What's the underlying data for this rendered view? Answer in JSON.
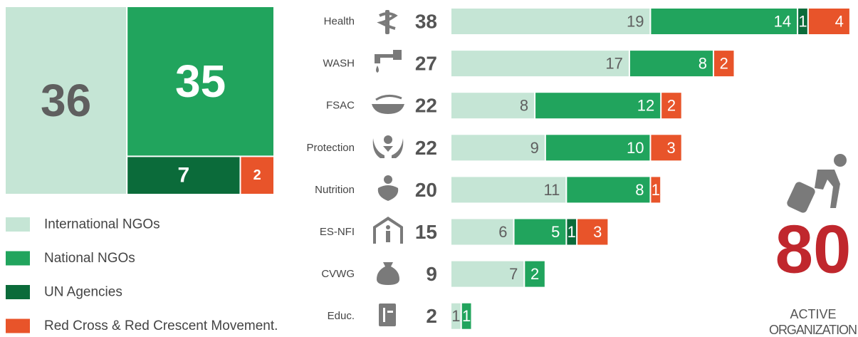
{
  "chart_data": [
    {
      "type": "treemap",
      "values": [
        36,
        35,
        7,
        2
      ]
    },
    {
      "type": "bar",
      "orientation": "horizontal",
      "stacked": true,
      "categories": [
        "Health",
        "WASH",
        "FSAC",
        "Protection",
        "Nutrition",
        "ES-NFI",
        "CVWG",
        "Educ."
      ],
      "totals": [
        38,
        27,
        22,
        22,
        20,
        15,
        9,
        2
      ],
      "series": [
        {
          "name": "International NGOs",
          "color": "#c5e5d5",
          "values": [
            19,
            17,
            8,
            9,
            11,
            6,
            7,
            1
          ]
        },
        {
          "name": "National NGOs",
          "color": "#21a45d",
          "values": [
            14,
            8,
            12,
            10,
            8,
            5,
            2,
            1
          ]
        },
        {
          "name": "UN Agencies",
          "color": "#0b6b3a",
          "values": [
            1,
            null,
            null,
            null,
            null,
            1,
            null,
            null
          ]
        },
        {
          "name": "Red Cross & Red Crescent Movement.",
          "color": "#e8542a",
          "values": [
            4,
            2,
            2,
            3,
            1,
            3,
            null,
            null
          ]
        }
      ]
    }
  ],
  "summary": {
    "value": 80,
    "lines": [
      "ACTIVE",
      "ORGANIZATION"
    ]
  }
}
